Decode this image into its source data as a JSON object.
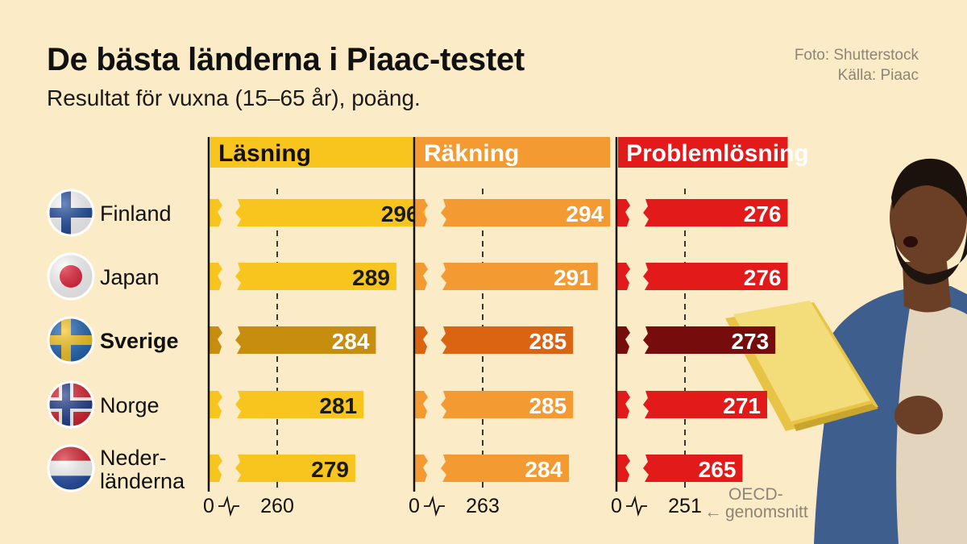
{
  "title": "De bästa länderna i Piaac-testet",
  "subtitle": "Resultat för vuxna (15–65 år), poäng.",
  "credits": {
    "photo": "Foto: Shutterstock",
    "source": "Källa: Piaac"
  },
  "annotation": {
    "oecd_line1": "OECD-",
    "oecd_line2": "genomsnitt",
    "arrow": "←"
  },
  "chart_data": {
    "type": "bar",
    "orientation": "horizontal",
    "axis_break": true,
    "categories": [
      "Finland",
      "Japan",
      "Sverige",
      "Norge",
      "Nederländerna"
    ],
    "category_labels": [
      [
        "Finland"
      ],
      [
        "Japan"
      ],
      [
        "Sverige"
      ],
      [
        "Norge"
      ],
      [
        "Neder-",
        "länderna"
      ]
    ],
    "highlight": "Sverige",
    "series": [
      {
        "name": "Läsning",
        "values": [
          296,
          289,
          284,
          281,
          279
        ],
        "color": "#f7c51e",
        "highlight_color": "#c78d0e",
        "axis_zero": "0",
        "oecd_average": 260
      },
      {
        "name": "Räkning",
        "values": [
          294,
          291,
          285,
          285,
          284
        ],
        "color": "#f39a33",
        "highlight_color": "#db6412",
        "axis_zero": "0",
        "oecd_average": 263
      },
      {
        "name": "Problemlösning",
        "values": [
          276,
          276,
          273,
          271,
          265
        ],
        "color": "#e21a1a",
        "highlight_color": "#760c0c",
        "axis_zero": "0",
        "oecd_average": 251
      }
    ],
    "legend": "none",
    "grid": false
  }
}
